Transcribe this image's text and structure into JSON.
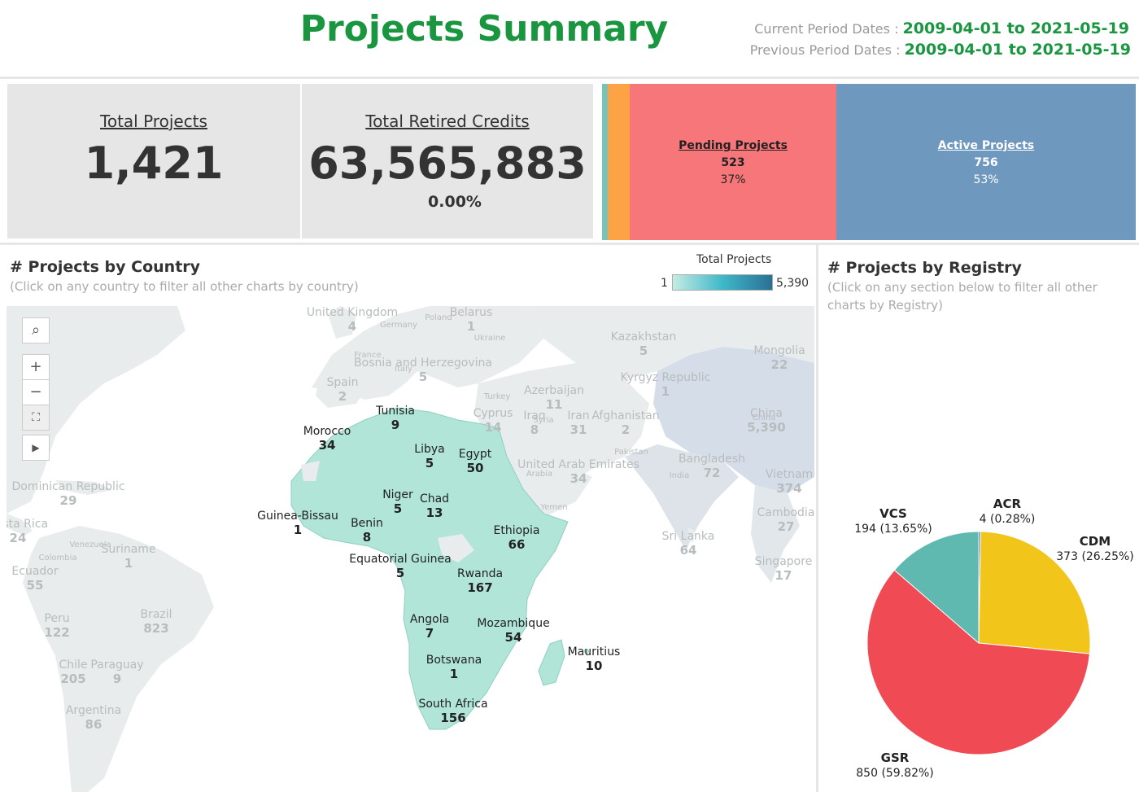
{
  "header": {
    "title": "Projects Summary",
    "current_period_label": "Current Period Dates :",
    "current_period_value": "2009-04-01 to 2021-05-19",
    "previous_period_label": "Previous Period Dates :",
    "previous_period_value": "2009-04-01 to 2021-05-19"
  },
  "kpis": {
    "total_projects_label": "Total Projects",
    "total_projects_value": "1,421",
    "total_retired_label": "Total Retired Credits",
    "total_retired_value": "63,565,883",
    "total_retired_change": "0.00%"
  },
  "status_bar": {
    "colors": {
      "teal": "#76c4b9",
      "orange": "#fba345",
      "pending": "#f7767a",
      "active": "#6f98bf"
    },
    "segments": [
      {
        "label": "",
        "share": 1.0
      },
      {
        "label": "",
        "share": 3.9
      },
      {
        "label": "Pending Projects",
        "count": "523",
        "pct": "37%",
        "share": 36.8
      },
      {
        "label": "Active Projects",
        "count": "756",
        "pct": "53%",
        "share": 53.2
      }
    ],
    "pending": {
      "label": "Pending Projects",
      "count": "523",
      "pct": "37%"
    },
    "active": {
      "label": "Active Projects",
      "count": "756",
      "pct": "53%"
    }
  },
  "map": {
    "title": "# Projects by Country",
    "subtitle": "(Click on any country to filter all other charts by country)",
    "legend": {
      "title": "Total Projects",
      "min": "1",
      "max": "5,390",
      "color_low": "#c4ece3",
      "color_high": "#2a6f95"
    },
    "highlight_color": "#b0e5d8",
    "controls": {
      "search": "⌕",
      "zoom_in": "+",
      "zoom_out": "−",
      "reset": "⛶",
      "play": "▶"
    },
    "africa_labels": [
      {
        "name": "Tunisia",
        "value": "9"
      },
      {
        "name": "Morocco",
        "value": "34"
      },
      {
        "name": "Libya",
        "value": "5"
      },
      {
        "name": "Egypt",
        "value": "50"
      },
      {
        "name": "Niger",
        "value": "5"
      },
      {
        "name": "Chad",
        "value": "13"
      },
      {
        "name": "Guinea-Bissau",
        "value": "1"
      },
      {
        "name": "Benin",
        "value": "8"
      },
      {
        "name": "Ethiopia",
        "value": "66"
      },
      {
        "name": "Equatorial Guinea",
        "value": "5"
      },
      {
        "name": "Rwanda",
        "value": "167"
      },
      {
        "name": "Angola",
        "value": "7"
      },
      {
        "name": "Mozambique",
        "value": "54"
      },
      {
        "name": "Mauritius",
        "value": "10"
      },
      {
        "name": "Botswana",
        "value": "1"
      },
      {
        "name": "South Africa",
        "value": "156"
      }
    ],
    "dim_labels": [
      {
        "name": "United Kingdom",
        "value": "4"
      },
      {
        "name": "Belarus",
        "value": "1"
      },
      {
        "name": "Kazakhstan",
        "value": "5"
      },
      {
        "name": "Mongolia",
        "value": "22"
      },
      {
        "name": "Bosnia and Herzegovina",
        "value": "5"
      },
      {
        "name": "Kyrgyz Republic",
        "value": "1"
      },
      {
        "name": "Azerbaijan",
        "value": "11"
      },
      {
        "name": "Spain",
        "value": "2"
      },
      {
        "name": "Cyprus",
        "value": "14"
      },
      {
        "name": "Iraq",
        "value": "8"
      },
      {
        "name": "Iran",
        "value": "31"
      },
      {
        "name": "Afghanistan",
        "value": "2"
      },
      {
        "name": "China",
        "value": "5,390"
      },
      {
        "name": "United Arab Emirates",
        "value": "34"
      },
      {
        "name": "Bangladesh",
        "value": "72"
      },
      {
        "name": "Vietnam",
        "value": "374"
      },
      {
        "name": "Dominican Republic",
        "value": "29"
      },
      {
        "name": "Cambodia",
        "value": "27"
      },
      {
        "name": "Costa Rica",
        "value": "24"
      },
      {
        "name": "Sri Lanka",
        "value": "64"
      },
      {
        "name": "Suriname",
        "value": "1"
      },
      {
        "name": "Singapore",
        "value": "17"
      },
      {
        "name": "Ecuador",
        "value": "55"
      },
      {
        "name": "Brazil",
        "value": "823"
      },
      {
        "name": "Peru",
        "value": "122"
      },
      {
        "name": "Chile",
        "value": "205"
      },
      {
        "name": "Paraguay",
        "value": "9"
      },
      {
        "name": "Argentina",
        "value": "86"
      }
    ],
    "basemap_labels": [
      "Germany",
      "Poland",
      "Ukraine",
      "France",
      "Italy",
      "Turkey",
      "Syria",
      "Pakistan",
      "Arabia",
      "India",
      "Yemen",
      "China",
      "Venezuela",
      "Colombia"
    ]
  },
  "registry": {
    "title": "# Projects by Registry",
    "subtitle_line1": "(Click on any section below to filter all other",
    "subtitle_line2": "charts by Registry)",
    "labels": {
      "vcs": {
        "name": "VCS",
        "value": "194",
        "pct": "(13.65%)"
      },
      "acr": {
        "name": "ACR",
        "value": "4",
        "pct": "(0.28%)"
      },
      "cdm": {
        "name": "CDM",
        "value": "373",
        "pct": "(26.25%)"
      },
      "gsr": {
        "name": "GSR",
        "value": "850",
        "pct": "(59.82%)"
      }
    }
  },
  "chart_data": [
    {
      "type": "pie",
      "title": "# Projects by Registry",
      "slices": [
        {
          "name": "ACR",
          "value": 4,
          "pct": 0.28,
          "color": "#4e79a7"
        },
        {
          "name": "CDM",
          "value": 373,
          "pct": 26.25,
          "color": "#f2c51b"
        },
        {
          "name": "GSR",
          "value": 850,
          "pct": 59.82,
          "color": "#f04a55"
        },
        {
          "name": "VCS",
          "value": 194,
          "pct": 13.65,
          "color": "#5fb9b0"
        }
      ]
    },
    {
      "type": "bar",
      "title": "Project Status",
      "orientation": "horizontal-stacked",
      "categories": [
        "",
        "",
        "Pending Projects",
        "Active Projects"
      ],
      "values": [
        1.0,
        3.9,
        36.8,
        53.2
      ],
      "unit": "% of projects"
    }
  ]
}
